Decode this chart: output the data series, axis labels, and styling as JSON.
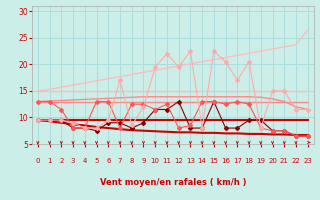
{
  "bg_color": "#cceee8",
  "grid_color": "#aadddd",
  "xlabel": "Vent moyen/en rafales ( km/h )",
  "xlabel_color": "#cc0000",
  "tick_color": "#cc0000",
  "arrow_color": "#cc0000",
  "xlim": [
    -0.5,
    23.5
  ],
  "ylim": [
    5,
    31
  ],
  "yticks": [
    5,
    10,
    15,
    20,
    25,
    30
  ],
  "xticks": [
    0,
    1,
    2,
    3,
    4,
    5,
    6,
    7,
    8,
    9,
    10,
    11,
    12,
    13,
    14,
    15,
    16,
    17,
    18,
    19,
    20,
    21,
    22,
    23
  ],
  "series": [
    {
      "name": "flat_light_high",
      "x": [
        0,
        1,
        2,
        3,
        4,
        5,
        6,
        7,
        8,
        9,
        10,
        11,
        12,
        13,
        14,
        15,
        16,
        17,
        18,
        19,
        20,
        21,
        22,
        23
      ],
      "y": [
        15.0,
        15.0,
        15.0,
        15.0,
        15.0,
        15.0,
        15.0,
        15.0,
        15.0,
        15.0,
        15.0,
        15.0,
        15.0,
        15.0,
        15.0,
        15.0,
        15.0,
        15.0,
        15.0,
        15.0,
        15.0,
        15.0,
        15.0,
        15.0
      ],
      "color": "#ffbbbb",
      "lw": 1.0,
      "marker": null,
      "zorder": 2
    },
    {
      "name": "rising_light",
      "x": [
        0,
        1,
        2,
        3,
        4,
        5,
        6,
        7,
        8,
        9,
        10,
        11,
        12,
        13,
        14,
        15,
        16,
        17,
        18,
        19,
        20,
        21,
        22,
        23
      ],
      "y": [
        15.0,
        15.3,
        15.7,
        16.1,
        16.5,
        16.9,
        17.3,
        17.7,
        18.1,
        18.5,
        18.9,
        19.3,
        19.7,
        20.1,
        20.5,
        20.9,
        21.3,
        21.7,
        22.1,
        22.5,
        22.9,
        23.3,
        23.7,
        26.5
      ],
      "color": "#ffbbbb",
      "lw": 1.0,
      "marker": null,
      "zorder": 2
    },
    {
      "name": "flat_medium_pink",
      "x": [
        0,
        1,
        2,
        3,
        4,
        5,
        6,
        7,
        8,
        9,
        10,
        11,
        12,
        13,
        14,
        15,
        16,
        17,
        18,
        19,
        20,
        21,
        22,
        23
      ],
      "y": [
        13.0,
        13.0,
        13.0,
        13.0,
        13.0,
        13.0,
        13.0,
        13.0,
        13.0,
        13.0,
        13.0,
        13.0,
        13.0,
        13.0,
        13.0,
        13.0,
        13.0,
        13.0,
        13.0,
        13.0,
        13.0,
        13.0,
        13.0,
        13.0
      ],
      "color": "#ff8888",
      "lw": 1.0,
      "marker": null,
      "zorder": 2
    },
    {
      "name": "flat_medium_pink2",
      "x": [
        0,
        1,
        2,
        3,
        4,
        5,
        6,
        7,
        8,
        9,
        10,
        11,
        12,
        13,
        14,
        15,
        16,
        17,
        18,
        19,
        20,
        21,
        22,
        23
      ],
      "y": [
        13.0,
        13.1,
        13.2,
        13.3,
        13.4,
        13.5,
        13.6,
        13.7,
        13.8,
        13.9,
        13.9,
        13.9,
        13.9,
        13.9,
        13.9,
        13.9,
        13.9,
        13.9,
        13.9,
        13.8,
        13.5,
        13.0,
        12.0,
        11.5
      ],
      "color": "#ff8888",
      "lw": 1.0,
      "marker": null,
      "zorder": 2
    },
    {
      "name": "flat_dark_high",
      "x": [
        0,
        1,
        2,
        3,
        4,
        5,
        6,
        7,
        8,
        9,
        10,
        11,
        12,
        13,
        14,
        15,
        16,
        17,
        18,
        19,
        20,
        21,
        22,
        23
      ],
      "y": [
        9.5,
        9.5,
        9.5,
        9.5,
        9.5,
        9.5,
        9.5,
        9.5,
        9.5,
        9.5,
        9.5,
        9.5,
        9.5,
        9.5,
        9.5,
        9.5,
        9.5,
        9.5,
        9.5,
        9.5,
        9.5,
        9.5,
        9.5,
        9.5
      ],
      "color": "#cc0000",
      "lw": 1.5,
      "marker": null,
      "zorder": 3
    },
    {
      "name": "declining_dark",
      "x": [
        0,
        1,
        2,
        3,
        4,
        5,
        6,
        7,
        8,
        9,
        10,
        11,
        12,
        13,
        14,
        15,
        16,
        17,
        18,
        19,
        20,
        21,
        22,
        23
      ],
      "y": [
        9.5,
        9.3,
        9.0,
        8.7,
        8.5,
        8.2,
        8.0,
        7.8,
        7.6,
        7.5,
        7.4,
        7.3,
        7.2,
        7.2,
        7.1,
        7.1,
        7.0,
        7.0,
        6.9,
        6.9,
        6.8,
        6.8,
        6.7,
        6.7
      ],
      "color": "#cc0000",
      "lw": 1.5,
      "marker": null,
      "zorder": 3
    },
    {
      "name": "volatile_dark_markers",
      "x": [
        0,
        1,
        2,
        3,
        4,
        5,
        6,
        7,
        8,
        9,
        10,
        11,
        12,
        13,
        14,
        15,
        16,
        17,
        18,
        19,
        20,
        21,
        22,
        23
      ],
      "y": [
        9.5,
        9.5,
        9.5,
        8.0,
        8.0,
        7.5,
        9.0,
        9.0,
        8.0,
        9.0,
        11.5,
        11.5,
        13.0,
        8.0,
        8.0,
        13.0,
        8.0,
        8.0,
        9.5,
        9.5,
        7.5,
        7.5,
        6.5,
        6.5
      ],
      "color": "#880000",
      "lw": 0.8,
      "marker": "D",
      "ms": 2.0,
      "zorder": 4
    },
    {
      "name": "medium_pink_markers",
      "x": [
        0,
        1,
        2,
        3,
        4,
        5,
        6,
        7,
        8,
        9,
        10,
        11,
        12,
        13,
        14,
        15,
        16,
        17,
        18,
        19,
        20,
        21,
        22,
        23
      ],
      "y": [
        13.0,
        13.0,
        11.5,
        8.0,
        8.0,
        13.0,
        13.0,
        8.0,
        12.5,
        12.5,
        11.5,
        12.5,
        8.0,
        8.5,
        13.0,
        13.0,
        12.5,
        13.0,
        12.5,
        8.0,
        7.5,
        7.5,
        6.5,
        6.5
      ],
      "color": "#ff5555",
      "lw": 0.8,
      "marker": "D",
      "ms": 2.0,
      "zorder": 4
    },
    {
      "name": "volatile_light_markers",
      "x": [
        0,
        1,
        2,
        3,
        4,
        5,
        6,
        7,
        8,
        9,
        10,
        11,
        12,
        13,
        14,
        15,
        16,
        17,
        18,
        19,
        20,
        21,
        22,
        23
      ],
      "y": [
        9.5,
        9.5,
        9.5,
        9.0,
        8.0,
        8.0,
        9.5,
        17.0,
        8.5,
        12.0,
        19.5,
        22.0,
        19.5,
        22.5,
        8.0,
        22.5,
        20.5,
        17.0,
        20.5,
        8.0,
        15.0,
        15.0,
        11.5,
        11.5
      ],
      "color": "#ffaaaa",
      "lw": 0.8,
      "marker": "D",
      "ms": 2.0,
      "zorder": 5
    }
  ],
  "wind_arrows": [
    0,
    1,
    2,
    3,
    4,
    5,
    6,
    7,
    8,
    9,
    10,
    11,
    12,
    13,
    14,
    15,
    16,
    17,
    18,
    19,
    20,
    21,
    22,
    23
  ]
}
